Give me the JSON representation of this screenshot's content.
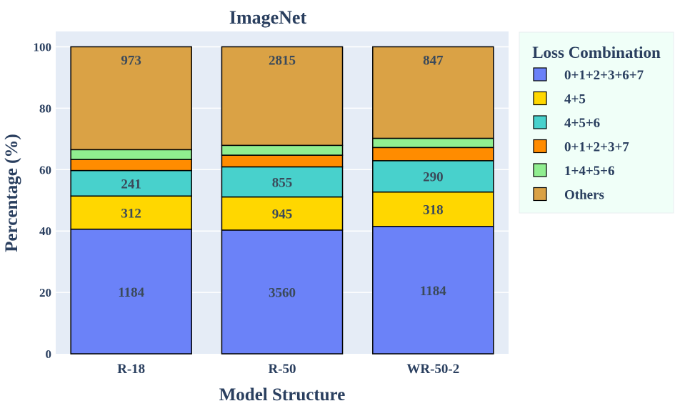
{
  "chart_data": {
    "type": "bar",
    "stacked": true,
    "title": "ImageNet",
    "xlabel": "Model Structure",
    "ylabel": "Percentage (%)",
    "ylim": [
      0,
      105
    ],
    "yticks": [
      "0",
      "20",
      "40",
      "60",
      "80",
      "100"
    ],
    "categories": [
      "R-18",
      "R-50",
      "WR-50-2"
    ],
    "legend_title": "Loss Combination",
    "legend_position": "right",
    "grid": true,
    "series": [
      {
        "name": "0+1+2+3+6+7",
        "color": "#6b82f8",
        "values": [
          40.6,
          40.3,
          41.5
        ],
        "labels": [
          "1184",
          "3560",
          "1184"
        ]
      },
      {
        "name": "4+5",
        "color": "#ffd700",
        "values": [
          10.8,
          10.8,
          11.2
        ],
        "labels": [
          "312",
          "945",
          "318"
        ]
      },
      {
        "name": "4+5+6",
        "color": "#48d1cc",
        "values": [
          8.3,
          9.8,
          10.2
        ],
        "labels": [
          "241",
          "855",
          "290"
        ]
      },
      {
        "name": "0+1+2+3+7",
        "color": "#ff8c00",
        "values": [
          3.6,
          3.8,
          4.3
        ],
        "labels": [
          "",
          "",
          ""
        ]
      },
      {
        "name": "1+4+5+6",
        "color": "#90ee90",
        "values": [
          3.2,
          3.2,
          3.0
        ],
        "labels": [
          "",
          "",
          ""
        ]
      },
      {
        "name": "Others",
        "color": "#daa245",
        "values": [
          33.5,
          32.1,
          29.8
        ],
        "labels": [
          "973",
          "2815",
          "847"
        ]
      }
    ]
  },
  "colors": {
    "plot_bg": "#e5ecf6",
    "text": "#2a3f5f",
    "data_label": "#3b4a5a",
    "legend_bg": "#f0fff8"
  }
}
